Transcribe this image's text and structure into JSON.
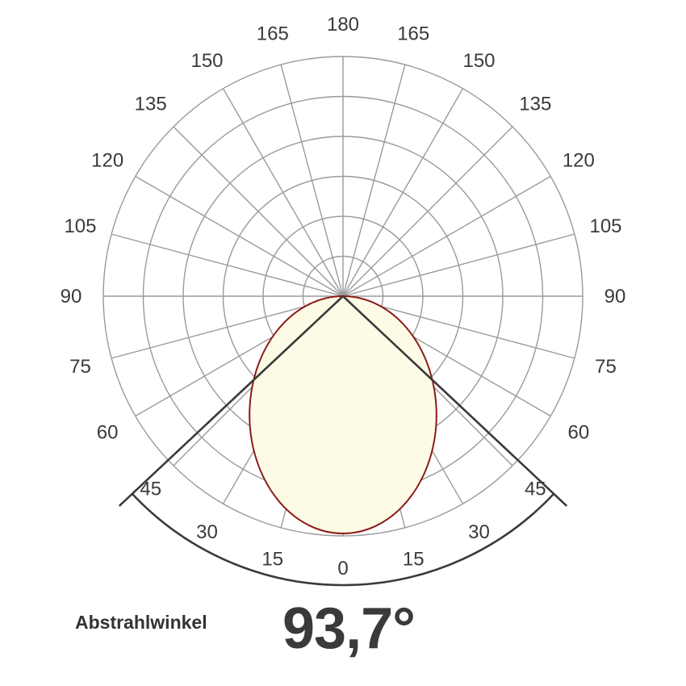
{
  "chart_data": {
    "type": "polar",
    "angular_tick_labels": [
      "0",
      "15",
      "30",
      "45",
      "60",
      "75",
      "90",
      "105",
      "120",
      "135",
      "150",
      "165",
      "180"
    ],
    "angle_step_deg": 15,
    "radial_rings": 6,
    "series": [
      {
        "kind": "light-distribution",
        "shape": "ellipse",
        "peak_direction_deg": 0,
        "peak_value_fraction": 0.99,
        "half_width_at_origin_fraction": 0.39,
        "fill_color": "#fdfbe5",
        "line_color": "#8b1a1a"
      }
    ],
    "beam_angle_deg": 93.7,
    "beam_arc_color": "#3a3a3a",
    "grid": true
  },
  "caption": {
    "label": "Abstrahlwinkel",
    "value": "93,7°"
  }
}
